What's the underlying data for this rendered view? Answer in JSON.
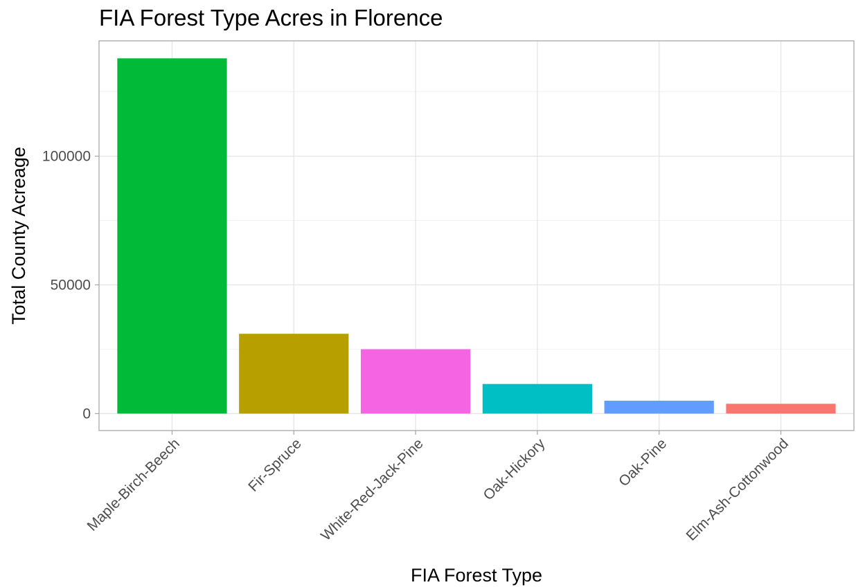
{
  "chart_data": {
    "type": "bar",
    "title": "FIA Forest Type Acres in Florence",
    "xlabel": "FIA Forest Type",
    "ylabel": "Total County Acreage",
    "categories": [
      "Maple-Birch-Beech",
      "Fir-Spruce",
      "White-Red-Jack-Pine",
      "Oak-Hickory",
      "Oak-Pine",
      "Elm-Ash-Cottonwood"
    ],
    "values": [
      138000,
      31000,
      25000,
      11500,
      5000,
      3800
    ],
    "colors": [
      "#00ba38",
      "#b79f00",
      "#f564e3",
      "#00bfc4",
      "#619cff",
      "#f8766d"
    ],
    "yticks": [
      0,
      50000,
      100000
    ],
    "ytick_labels": [
      "0",
      "50000",
      "100000"
    ],
    "ylim": [
      -6600,
      144800
    ],
    "grid": true,
    "legend": "none"
  }
}
